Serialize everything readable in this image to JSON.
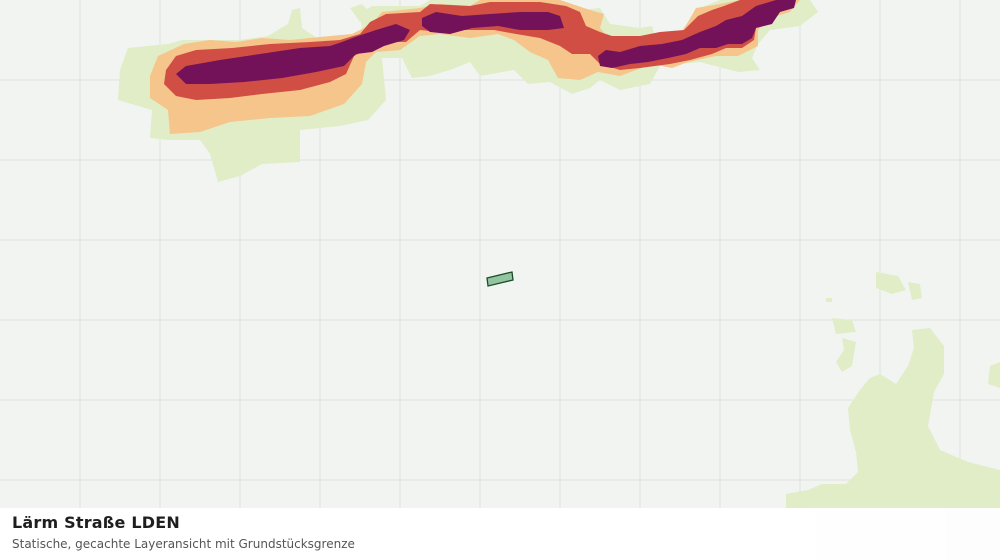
{
  "layer": {
    "title": "Lärm Straße LDEN",
    "subtitle": "Statische, gecachte Layeransicht mit Grundstücksgrenze"
  },
  "legend_colors": {
    "background": "#f2f4f2",
    "grid": "#dfe2df",
    "band_55_60": "#e0edc6",
    "band_60_65": "#f5c58c",
    "band_65_70": "#d04e44",
    "band_70_plus": "#731259",
    "parcel_fill": "#93c4a0",
    "parcel_stroke": "#1b4d2b"
  }
}
